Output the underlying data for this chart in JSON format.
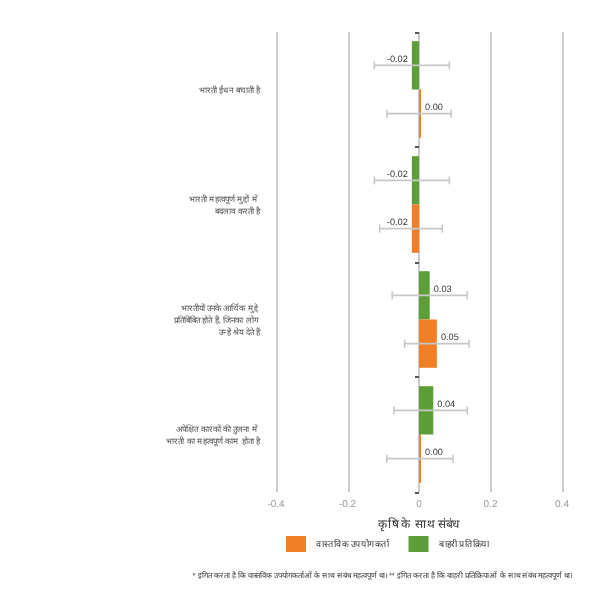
{
  "chart_data": {
    "type": "bar",
    "orientation": "horizontal",
    "xlabel": "कृषि के साथ संबंध",
    "categories": [
      "भारती ईंधन बचाती है",
      "भारती महत्वपूर्ण मुद्दों में बदलाव करती है",
      "भारतीयों उनके आर्थिक मुद्दे प्रतिबिंबित होते हैं, जिनका लोग उन्हें श्रेय देते हैं",
      "अपेक्षित कारकों की तुलना में भारती का महत्वपूर्ण काम होता है"
    ],
    "series": [
      {
        "name": "बाहरी प्रतिक्रिया",
        "color": "#5e9e38",
        "values": [
          -0.02,
          -0.02,
          0.03,
          0.04
        ],
        "errors": [
          [
            -0.125,
            0.085
          ],
          [
            -0.125,
            0.085
          ],
          [
            -0.075,
            0.135
          ],
          [
            -0.07,
            0.135
          ]
        ],
        "value_labels": [
          "-0.02",
          "-0.02",
          "0.03",
          "0.04"
        ]
      },
      {
        "name": "वास्तविक उपयोगकर्ता",
        "color": "#f07f27",
        "values": [
          0.0,
          -0.02,
          0.05,
          0.0
        ],
        "errors": [
          [
            -0.09,
            0.09
          ],
          [
            -0.11,
            0.065
          ],
          [
            -0.04,
            0.14
          ],
          [
            -0.09,
            0.095
          ]
        ],
        "value_labels": [
          "0.00",
          "-0.02",
          "0.05",
          "0.00"
        ]
      }
    ],
    "xlim": [
      -0.4,
      0.4
    ],
    "xticks": [
      -0.4,
      -0.2,
      0.0,
      0.2,
      0.4
    ],
    "grid": "x",
    "legend": "bottom",
    "annotations": [
      "* इंगित करता है कि वास्तविक उपयोगकर्ताओं के साथ संबंध महत्वपूर्ण था। ** इंगित करता है कि बाहरी प्रतिक्रियाओं के साथ संबंध महत्वपूर्ण था।"
    ]
  }
}
